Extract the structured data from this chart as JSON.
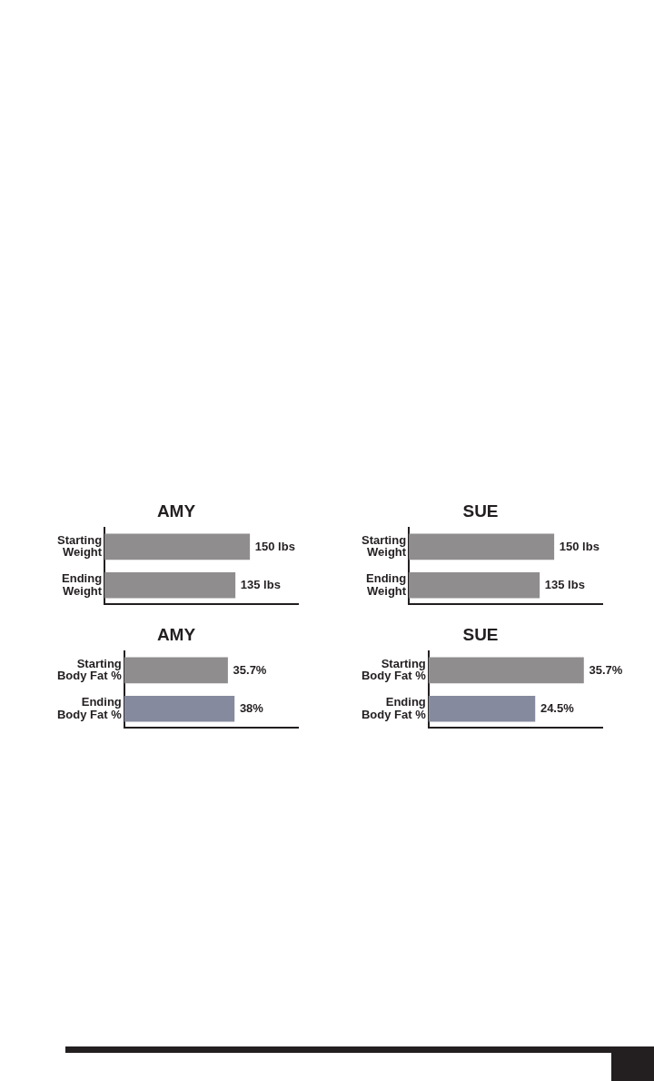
{
  "chart_data": [
    {
      "type": "bar",
      "orientation": "horizontal",
      "title": "AMY",
      "categories": [
        "Starting\nWeight",
        "Ending\nWeight"
      ],
      "values": [
        150,
        135
      ],
      "value_labels": [
        "150 lbs",
        "135 lbs"
      ],
      "colors": [
        "#8f8d8e",
        "#8f8d8e"
      ],
      "grid": false,
      "legend": false,
      "tick_labels": "y"
    },
    {
      "type": "bar",
      "orientation": "horizontal",
      "title": "SUE",
      "categories": [
        "Starting\nWeight",
        "Ending\nWeight"
      ],
      "values": [
        150,
        135
      ],
      "value_labels": [
        "150 lbs",
        "135 lbs"
      ],
      "colors": [
        "#8f8d8e",
        "#8f8d8e"
      ],
      "grid": false,
      "legend": false,
      "tick_labels": "y"
    },
    {
      "type": "bar",
      "orientation": "horizontal",
      "title": "AMY",
      "categories": [
        "Starting\nBody Fat %",
        "Ending\nBody Fat %"
      ],
      "values": [
        35.7,
        38
      ],
      "value_labels": [
        "35.7%",
        "38%"
      ],
      "colors": [
        "#8f8d8e",
        "#858a9e"
      ],
      "grid": false,
      "legend": false,
      "tick_labels": "y"
    },
    {
      "type": "bar",
      "orientation": "horizontal",
      "title": "SUE",
      "categories": [
        "Starting\nBody Fat %",
        "Ending\nBody Fat %"
      ],
      "values": [
        35.7,
        24.5
      ],
      "value_labels": [
        "35.7%",
        "24.5%"
      ],
      "colors": [
        "#8f8d8e",
        "#858a9e"
      ],
      "grid": false,
      "legend": false,
      "tick_labels": "y"
    }
  ]
}
